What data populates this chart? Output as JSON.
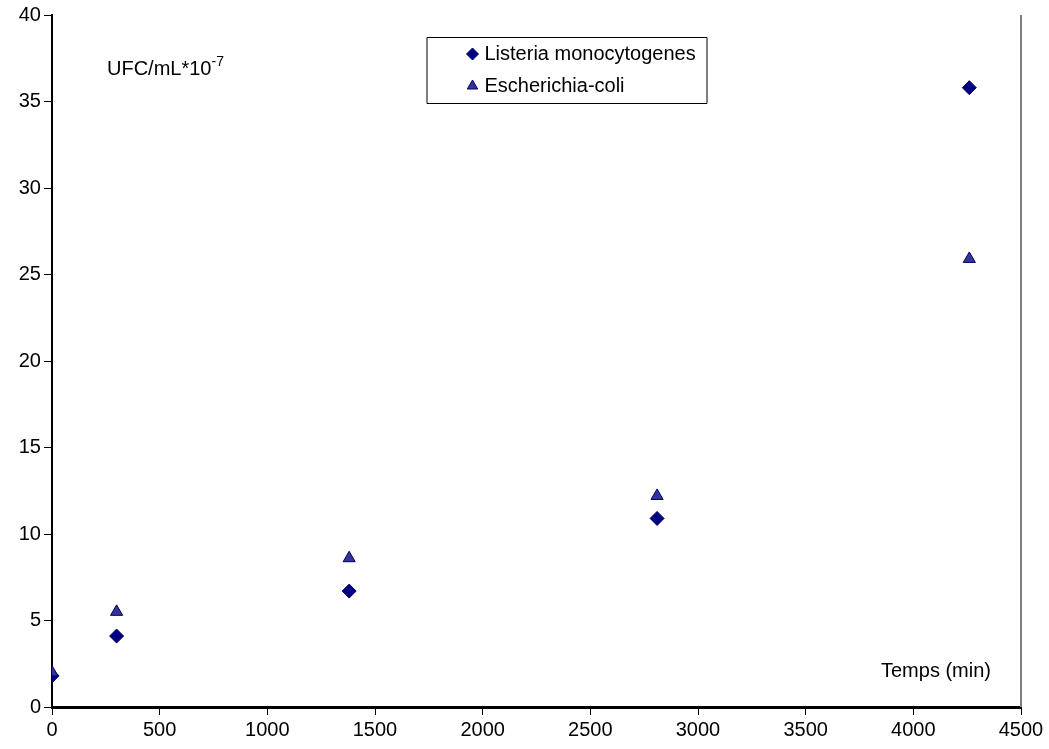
{
  "chart_data": {
    "type": "scatter",
    "xlabel": "Temps (min)",
    "ylabel": "UFC/mL*10$^{-7}$",
    "x": [
      0,
      300,
      1380,
      2810,
      4260
    ],
    "series": [
      {
        "name": "Listeria monocytogenes",
        "color": "#000080",
        "marker": "diamond",
        "values": [
          1.8,
          4.1,
          6.7,
          10.9,
          35.8
        ]
      },
      {
        "name": "Escherichia-coli",
        "color": "#333399",
        "marker": "triangle",
        "values": [
          2.0,
          5.5,
          8.6,
          12.2,
          25.9
        ]
      }
    ],
    "xlim": [
      0,
      4500
    ],
    "xticks": [
      0,
      500,
      1000,
      1500,
      2000,
      2500,
      3000,
      3500,
      4000,
      4500
    ],
    "ylim": [
      0,
      40
    ],
    "yticks": [
      0,
      5,
      10,
      15,
      20,
      25,
      30,
      35,
      40
    ],
    "grid": false,
    "legend": "top"
  }
}
